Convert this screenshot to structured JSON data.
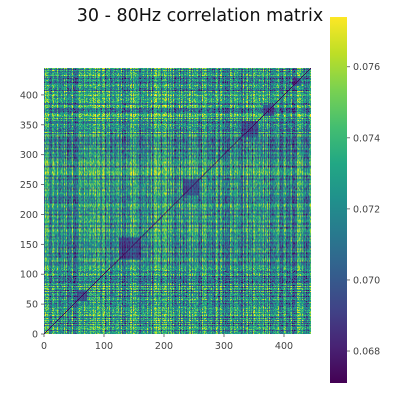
{
  "chart_data": {
    "type": "heatmap",
    "title": "30 - 80Hz correlation matrix",
    "xlabel": "",
    "ylabel": "",
    "matrix_size": 445,
    "xlim": [
      0,
      445
    ],
    "ylim": [
      0,
      445
    ],
    "x_ticks": [
      "0",
      "100",
      "200",
      "300",
      "400"
    ],
    "y_ticks": [
      "0",
      "50",
      "100",
      "150",
      "200",
      "250",
      "300",
      "350",
      "400"
    ],
    "colorbar": {
      "min": 0.0671,
      "max": 0.0774,
      "colormap": "viridis",
      "ticks": [
        "0.068",
        "0.070",
        "0.072",
        "0.074",
        "0.076"
      ]
    },
    "diagonal_value": 0.0671,
    "colors": {
      "low": "#440154",
      "mid": "#21918c",
      "high": "#fde725",
      "axis_text": "#444444",
      "background": "#ffffff"
    }
  }
}
